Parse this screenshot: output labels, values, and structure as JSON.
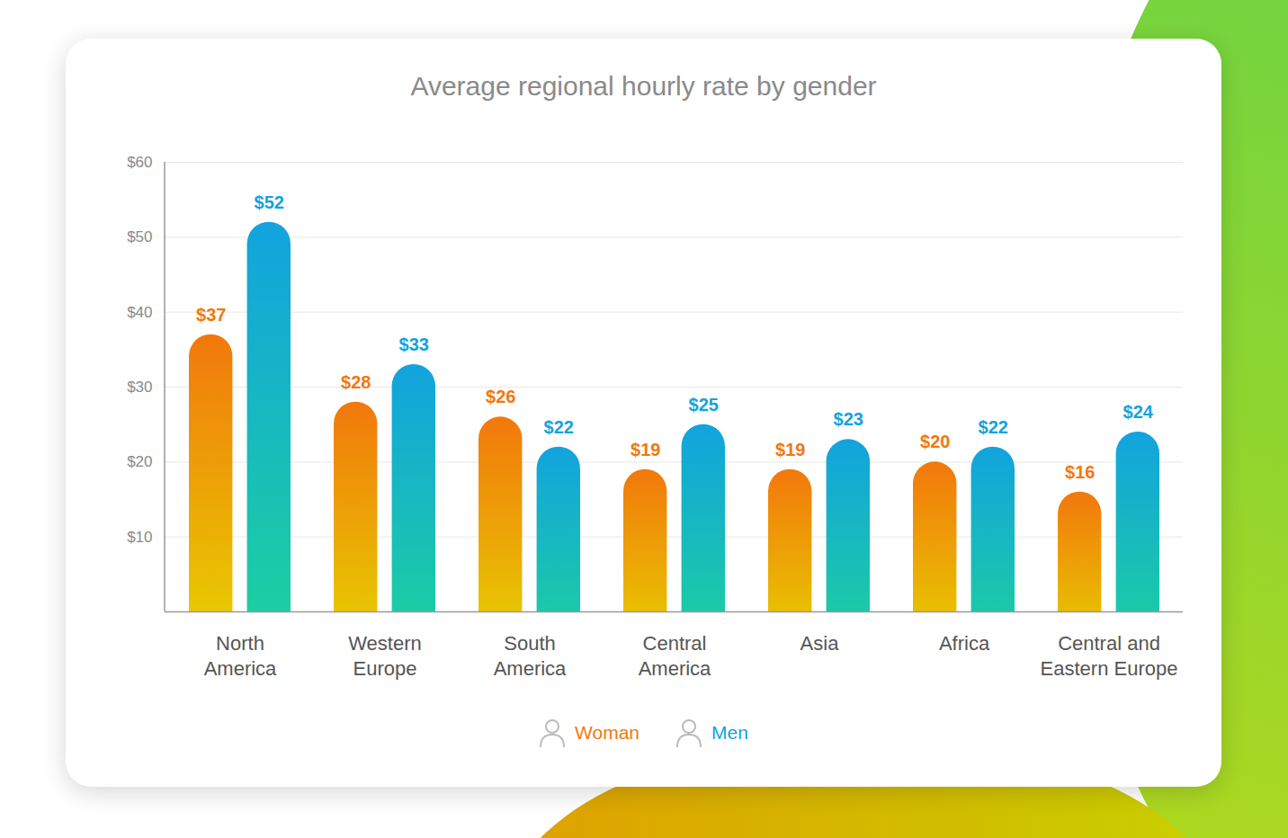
{
  "chart_data": {
    "type": "bar",
    "title": "Average regional hourly rate by gender",
    "categories": [
      "North America",
      "Western Europe",
      "South America",
      "Central America",
      "Asia",
      "Africa",
      "Central and Eastern Europe"
    ],
    "series": [
      {
        "name": "Woman",
        "color": "#f2780c",
        "values": [
          37,
          28,
          26,
          19,
          19,
          20,
          16
        ],
        "value_labels": [
          "$37",
          "$28",
          "$26",
          "$19",
          "$19",
          "$20",
          "$16"
        ]
      },
      {
        "name": "Men",
        "color": "#12a3de",
        "values": [
          52,
          33,
          22,
          25,
          23,
          22,
          24
        ],
        "value_labels": [
          "$52",
          "$33",
          "$22",
          "$25",
          "$23",
          "$22",
          "$24"
        ]
      }
    ],
    "ylim": [
      0,
      60
    ],
    "yticks": [
      {
        "value": 10,
        "label": "$10"
      },
      {
        "value": 20,
        "label": "$20"
      },
      {
        "value": 30,
        "label": "$30"
      },
      {
        "value": 40,
        "label": "$40"
      },
      {
        "value": 50,
        "label": "$50"
      },
      {
        "value": 60,
        "label": "$60"
      }
    ],
    "grid": true,
    "data_labels": true,
    "legend": "bottom"
  }
}
